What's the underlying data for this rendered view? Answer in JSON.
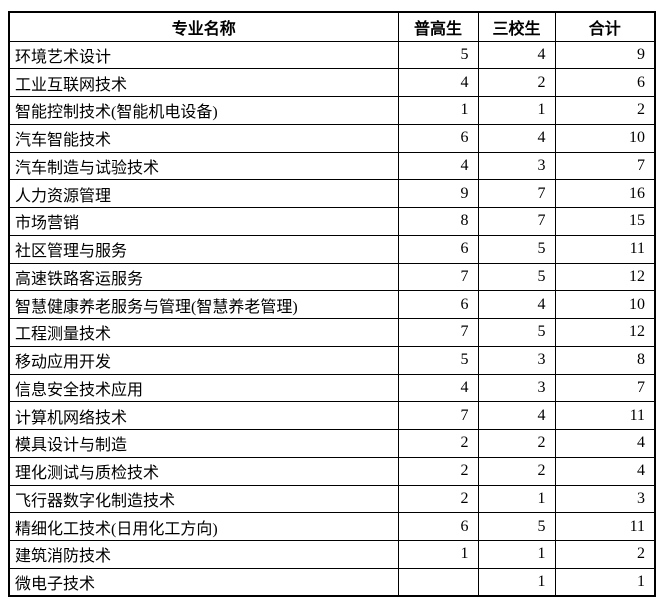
{
  "table": {
    "border_color": "#000000",
    "columns": [
      "专业名称",
      "普高生",
      "三校生",
      "合计"
    ],
    "rows": [
      [
        "环境艺术设计",
        "5",
        "4",
        "9"
      ],
      [
        "工业互联网技术",
        "4",
        "2",
        "6"
      ],
      [
        "智能控制技术(智能机电设备)",
        "1",
        "1",
        "2"
      ],
      [
        "汽车智能技术",
        "6",
        "4",
        "10"
      ],
      [
        "汽车制造与试验技术",
        "4",
        "3",
        "7"
      ],
      [
        "人力资源管理",
        "9",
        "7",
        "16"
      ],
      [
        "市场营销",
        "8",
        "7",
        "15"
      ],
      [
        "社区管理与服务",
        "6",
        "5",
        "11"
      ],
      [
        "高速铁路客运服务",
        "7",
        "5",
        "12"
      ],
      [
        "智慧健康养老服务与管理(智慧养老管理)",
        "6",
        "4",
        "10"
      ],
      [
        "工程测量技术",
        "7",
        "5",
        "12"
      ],
      [
        "移动应用开发",
        "5",
        "3",
        "8"
      ],
      [
        "信息安全技术应用",
        "4",
        "3",
        "7"
      ],
      [
        "计算机网络技术",
        "7",
        "4",
        "11"
      ],
      [
        "模具设计与制造",
        "2",
        "2",
        "4"
      ],
      [
        "理化测试与质检技术",
        "2",
        "2",
        "4"
      ],
      [
        "飞行器数字化制造技术",
        "2",
        "1",
        "3"
      ],
      [
        "精细化工技术(日用化工方向)",
        "6",
        "5",
        "11"
      ],
      [
        "建筑消防技术",
        "1",
        "1",
        "2"
      ],
      [
        "微电子技术",
        "",
        "1",
        "1"
      ]
    ]
  }
}
